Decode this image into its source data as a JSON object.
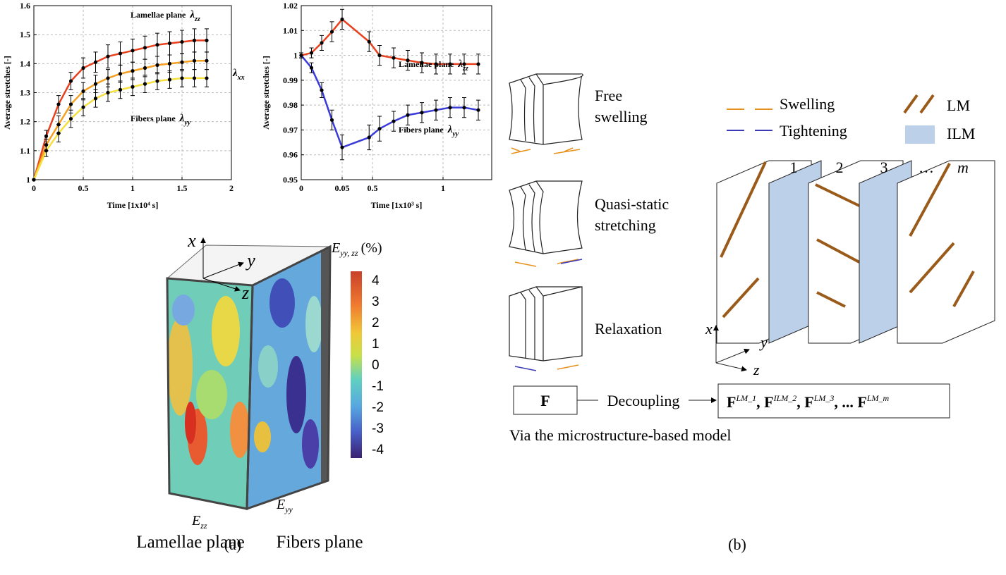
{
  "chart_data": [
    {
      "type": "line",
      "x_label": "Time [1x10⁴ s]",
      "y_label": "Average stretches [-]",
      "x": [
        0,
        0.125,
        0.25,
        0.375,
        0.5,
        0.625,
        0.75,
        0.875,
        1,
        1.125,
        1.25,
        1.375,
        1.5,
        1.625,
        1.75
      ],
      "xlim": [
        0,
        2
      ],
      "xticks": [
        0,
        0.5,
        1,
        1.5,
        2
      ],
      "ylim": [
        1,
        1.6
      ],
      "yticks": [
        1,
        1.1,
        1.2,
        1.3,
        1.4,
        1.5,
        1.6
      ],
      "grid": true,
      "series": [
        {
          "color": "#e8401c",
          "values": [
            1,
            1.15,
            1.26,
            1.34,
            1.385,
            1.405,
            1.425,
            1.435,
            1.445,
            1.455,
            1.465,
            1.47,
            1.475,
            1.48,
            1.48
          ],
          "errors": [
            0,
            0.02,
            0.03,
            0.03,
            0.035,
            0.035,
            0.04,
            0.04,
            0.04,
            0.04,
            0.04,
            0.04,
            0.04,
            0.04,
            0.04
          ]
        },
        {
          "color": "#f5a020",
          "values": [
            1,
            1.12,
            1.19,
            1.26,
            1.305,
            1.33,
            1.35,
            1.365,
            1.375,
            1.385,
            1.395,
            1.4,
            1.405,
            1.41,
            1.41
          ],
          "errors": [
            0,
            0.02,
            0.03,
            0.03,
            0.03,
            0.03,
            0.03,
            0.03,
            0.03,
            0.03,
            0.03,
            0.03,
            0.03,
            0.03,
            0.03
          ]
        },
        {
          "color": "#f5e040",
          "values": [
            1,
            1.1,
            1.16,
            1.21,
            1.25,
            1.28,
            1.3,
            1.31,
            1.32,
            1.33,
            1.34,
            1.345,
            1.35,
            1.35,
            1.35
          ],
          "errors": [
            0,
            0.02,
            0.03,
            0.03,
            0.03,
            0.03,
            0.03,
            0.03,
            0.03,
            0.03,
            0.03,
            0.03,
            0.03,
            0.03,
            0.03
          ]
        }
      ],
      "annotations": [
        {
          "text": "Lamellae plane",
          "symbol": "λ",
          "sub": "zz"
        },
        {
          "symbol": "λ",
          "sub": "xx"
        },
        {
          "text": "Fibers plane",
          "symbol": "λ",
          "sub": "yy"
        }
      ]
    },
    {
      "type": "line",
      "x_label": "Time [1x10³ s]",
      "y_label": "Average stretches [-]",
      "x": [
        0,
        0.0125,
        0.025,
        0.0375,
        0.05,
        0.45,
        0.55,
        0.65,
        0.75,
        0.85,
        0.95,
        1.05,
        1.15,
        1.25
      ],
      "xlim": [
        0,
        1.35
      ],
      "xticks": [
        0,
        0.05,
        0.5,
        1
      ],
      "ylim": [
        0.95,
        1.02
      ],
      "yticks": [
        0.95,
        0.96,
        0.97,
        0.98,
        0.99,
        1,
        1.01,
        1.02
      ],
      "grid": true,
      "series": [
        {
          "color": "#e8401c",
          "values": [
            1,
            1.001,
            1.005,
            1.0095,
            1.0145,
            1.0055,
            1,
            0.999,
            0.998,
            0.997,
            0.9965,
            0.9965,
            0.9965,
            0.9965
          ],
          "errors": [
            0.001,
            0.002,
            0.003,
            0.004,
            0.004,
            0.004,
            0.004,
            0.004,
            0.004,
            0.004,
            0.004,
            0.004,
            0.004,
            0.004
          ]
        },
        {
          "color": "#3b3bd8",
          "values": [
            1,
            0.995,
            0.986,
            0.974,
            0.963,
            0.967,
            0.9705,
            0.9735,
            0.976,
            0.977,
            0.978,
            0.979,
            0.979,
            0.978
          ],
          "errors": [
            0.001,
            0.002,
            0.003,
            0.004,
            0.005,
            0.005,
            0.005,
            0.004,
            0.004,
            0.004,
            0.004,
            0.004,
            0.004,
            0.004
          ]
        }
      ],
      "annotations": [
        {
          "text": "Lamellae plane",
          "symbol": "λ",
          "sub": "zz"
        },
        {
          "text": "Fibers plane",
          "symbol": "λ",
          "sub": "yy"
        }
      ]
    }
  ],
  "strain_map": {
    "axes": [
      "x",
      "y",
      "z"
    ],
    "colorbar_symbol": "E",
    "colorbar_sub": "yy, zz",
    "colorbar_unit": "(%)",
    "colorbar_ticks": [
      "4",
      "3",
      "2",
      "1",
      "0",
      "-1",
      "-2",
      "-3",
      "-4"
    ],
    "faces": [
      {
        "symbol": "E",
        "sub": "zz",
        "name": "Lamellae plane"
      },
      {
        "symbol": "E",
        "sub": "yy",
        "name": "Fibers plane"
      }
    ]
  },
  "model": {
    "stages": [
      [
        "Free",
        "swelling"
      ],
      [
        "Quasi-static",
        "stretching"
      ],
      [
        "Relaxation"
      ]
    ],
    "legend": [
      "Swelling",
      "Tightening",
      "LM",
      "ILM"
    ],
    "layers": [
      "1",
      "2",
      "3",
      "…",
      "m"
    ],
    "axes": [
      "x",
      "y",
      "z"
    ],
    "input": "F",
    "operation": "Decoupling",
    "outputs": [
      {
        "base": "F",
        "sup": "LM_1"
      },
      {
        "base": ", F",
        "sup": "ILM_2"
      },
      {
        "base": ", F",
        "sup": "LM_3"
      },
      {
        "base": ", ... F",
        "sup": "LM_m"
      }
    ],
    "note": "Via the microstructure-based model"
  },
  "captions": [
    "(a)",
    "(b)"
  ]
}
